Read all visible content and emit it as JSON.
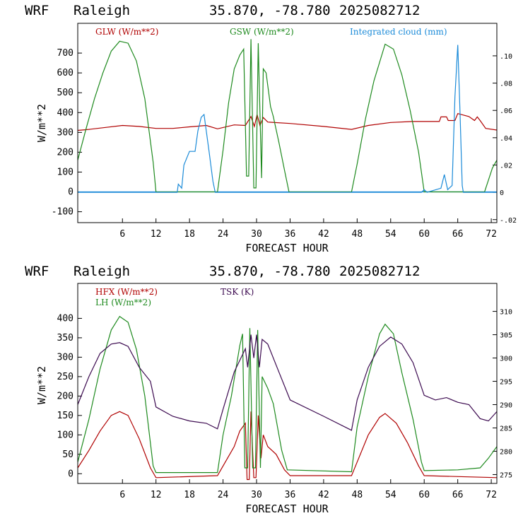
{
  "chart_data": [
    {
      "type": "line",
      "header": {
        "model": "WRF",
        "location": "Raleigh",
        "coords": "35.870, -78.780",
        "run": "2025082712"
      },
      "xlabel": "FORECAST HOUR",
      "ylabel": "W/m**2",
      "xlim": [
        -2,
        73
      ],
      "ylim": [
        -155,
        850
      ],
      "y2lim": [
        -0.0222,
        0.1238
      ],
      "xticks": [
        "6",
        "12",
        "18",
        "24",
        "30",
        "36",
        "42",
        "48",
        "54",
        "60",
        "66",
        "72"
      ],
      "yticks": [
        "-100",
        "0",
        "100",
        "200",
        "300",
        "400",
        "500",
        "600",
        "700"
      ],
      "y2ticks": [
        "-.02",
        "0",
        ".02",
        ".04",
        ".06",
        ".08",
        ".10"
      ],
      "zero_line": true,
      "colors": {
        "glw": "#b00000",
        "gsw": "#1e8a1e",
        "cloud": "#1a8ad8"
      },
      "series": [
        {
          "name": "GLW (W/m**2)",
          "axis": "left",
          "color": "#b00000",
          "points": [
            [
              -2,
              310
            ],
            [
              0,
              315
            ],
            [
              3,
              325
            ],
            [
              6,
              335
            ],
            [
              9,
              330
            ],
            [
              12,
              320
            ],
            [
              15,
              320
            ],
            [
              18,
              328
            ],
            [
              21,
              335
            ],
            [
              23,
              318
            ],
            [
              26,
              338
            ],
            [
              28,
              335
            ],
            [
              29,
              380
            ],
            [
              29.6,
              330
            ],
            [
              30.1,
              390
            ],
            [
              30.6,
              335
            ],
            [
              31.2,
              375
            ],
            [
              32,
              352
            ],
            [
              36,
              345
            ],
            [
              42,
              330
            ],
            [
              47,
              315
            ],
            [
              50,
              335
            ],
            [
              54,
              350
            ],
            [
              58,
              355
            ],
            [
              61,
              355
            ],
            [
              62.7,
              355
            ],
            [
              63,
              378
            ],
            [
              64,
              378
            ],
            [
              64.3,
              360
            ],
            [
              65.5,
              360
            ],
            [
              66,
              395
            ],
            [
              68,
              380
            ],
            [
              69,
              360
            ],
            [
              69.5,
              378
            ],
            [
              70,
              360
            ],
            [
              71,
              320
            ],
            [
              73,
              312
            ]
          ]
        },
        {
          "name": "GSW (W/m**2)",
          "axis": "left",
          "color": "#1e8a1e",
          "points": [
            [
              -2,
              160
            ],
            [
              -0.5,
              320
            ],
            [
              1,
              470
            ],
            [
              2.5,
              600
            ],
            [
              4,
              710
            ],
            [
              5.5,
              760
            ],
            [
              7,
              750
            ],
            [
              8.5,
              660
            ],
            [
              10,
              470
            ],
            [
              11.5,
              150
            ],
            [
              12,
              0
            ],
            [
              23,
              0
            ],
            [
              24,
              210
            ],
            [
              25,
              450
            ],
            [
              26,
              620
            ],
            [
              27,
              690
            ],
            [
              27.7,
              720
            ],
            [
              28.2,
              80
            ],
            [
              28.6,
              80
            ],
            [
              29,
              770
            ],
            [
              29.5,
              20
            ],
            [
              29.9,
              20
            ],
            [
              30.3,
              750
            ],
            [
              30.9,
              70
            ],
            [
              31.2,
              620
            ],
            [
              31.7,
              600
            ],
            [
              32.5,
              430
            ],
            [
              33,
              380
            ],
            [
              34,
              250
            ],
            [
              35,
              110
            ],
            [
              35.8,
              0
            ],
            [
              47,
              0
            ],
            [
              48,
              140
            ],
            [
              49.5,
              370
            ],
            [
              51,
              560
            ],
            [
              53,
              745
            ],
            [
              54.5,
              720
            ],
            [
              56,
              590
            ],
            [
              57.5,
              410
            ],
            [
              59,
              200
            ],
            [
              60,
              0
            ],
            [
              70.8,
              0
            ],
            [
              72.2,
              120
            ],
            [
              73,
              160
            ]
          ]
        },
        {
          "name": "Integrated cloud (mm)",
          "axis": "right",
          "color": "#1a8ad8",
          "points": [
            [
              -2,
              0
            ],
            [
              15.8,
              0
            ],
            [
              16,
              0.006
            ],
            [
              16.6,
              0.003
            ],
            [
              17,
              0.02
            ],
            [
              18,
              0.03
            ],
            [
              19,
              0.03
            ],
            [
              19.5,
              0.045
            ],
            [
              20.1,
              0.055
            ],
            [
              20.6,
              0.057
            ],
            [
              21.5,
              0.03
            ],
            [
              22.2,
              0.008
            ],
            [
              22.6,
              0
            ],
            [
              59.5,
              0
            ],
            [
              60,
              0.002
            ],
            [
              60.5,
              0
            ],
            [
              63,
              0.003
            ],
            [
              63.6,
              0.013
            ],
            [
              64.2,
              0.002
            ],
            [
              65,
              0.005
            ],
            [
              65.5,
              0.07
            ],
            [
              66,
              0.108
            ],
            [
              66.4,
              0.06
            ],
            [
              66.8,
              0.005
            ],
            [
              67,
              0
            ],
            [
              73,
              0
            ]
          ]
        }
      ]
    },
    {
      "type": "line",
      "header": {
        "model": "WRF",
        "location": "Raleigh",
        "coords": "35.870, -78.780",
        "run": "2025082712"
      },
      "xlabel": "FORECAST HOUR",
      "ylabel": "W/m**2",
      "xlim": [
        -2,
        73
      ],
      "ylim": [
        -25,
        490
      ],
      "y2lim": [
        273.1,
        316.0
      ],
      "xticks": [
        "6",
        "12",
        "18",
        "24",
        "30",
        "36",
        "42",
        "48",
        "54",
        "60",
        "66",
        "72"
      ],
      "yticks": [
        "0",
        "50",
        "100",
        "150",
        "200",
        "250",
        "300",
        "350",
        "400"
      ],
      "y2ticks": [
        "275",
        "280",
        "285",
        "290",
        "295",
        "300",
        "305",
        "310"
      ],
      "zero_line": false,
      "colors": {
        "hfx": "#b00000",
        "lh": "#1e8a1e",
        "tsk": "#3c0a50"
      },
      "series": [
        {
          "name": "HFX (W/m**2)",
          "axis": "left",
          "color": "#b00000",
          "points": [
            [
              -2,
              15
            ],
            [
              0,
              60
            ],
            [
              2,
              110
            ],
            [
              4,
              150
            ],
            [
              5.5,
              160
            ],
            [
              7,
              150
            ],
            [
              9,
              90
            ],
            [
              11,
              15
            ],
            [
              12,
              -10
            ],
            [
              23,
              -5
            ],
            [
              24,
              20
            ],
            [
              26,
              70
            ],
            [
              27,
              110
            ],
            [
              28,
              130
            ],
            [
              28.3,
              -15
            ],
            [
              28.7,
              -15
            ],
            [
              29,
              160
            ],
            [
              29.5,
              -10
            ],
            [
              29.9,
              -10
            ],
            [
              30.3,
              150
            ],
            [
              30.8,
              40
            ],
            [
              31.2,
              100
            ],
            [
              32,
              70
            ],
            [
              33.5,
              50
            ],
            [
              35,
              10
            ],
            [
              36,
              -5
            ],
            [
              47,
              -5
            ],
            [
              48,
              30
            ],
            [
              50,
              100
            ],
            [
              52,
              145
            ],
            [
              53,
              155
            ],
            [
              55,
              130
            ],
            [
              57,
              80
            ],
            [
              59,
              20
            ],
            [
              60,
              -5
            ],
            [
              73,
              -10
            ]
          ]
        },
        {
          "name": "LH  (W/m**2)",
          "axis": "left",
          "color": "#1e8a1e",
          "points": [
            [
              -2,
              30
            ],
            [
              0,
              140
            ],
            [
              2,
              270
            ],
            [
              4,
              370
            ],
            [
              5.5,
              405
            ],
            [
              7,
              390
            ],
            [
              8.5,
              320
            ],
            [
              10,
              200
            ],
            [
              11.5,
              20
            ],
            [
              12,
              3
            ],
            [
              23,
              3
            ],
            [
              24,
              100
            ],
            [
              25.5,
              200
            ],
            [
              27,
              330
            ],
            [
              27.5,
              360
            ],
            [
              27.9,
              15
            ],
            [
              28.4,
              15
            ],
            [
              28.8,
              375
            ],
            [
              29.3,
              15
            ],
            [
              29.8,
              15
            ],
            [
              30.2,
              370
            ],
            [
              30.7,
              15
            ],
            [
              31,
              250
            ],
            [
              32,
              220
            ],
            [
              33,
              180
            ],
            [
              34.5,
              60
            ],
            [
              35.5,
              10
            ],
            [
              47,
              5
            ],
            [
              48,
              120
            ],
            [
              50,
              250
            ],
            [
              52,
              360
            ],
            [
              53,
              385
            ],
            [
              54.5,
              360
            ],
            [
              56,
              260
            ],
            [
              58,
              140
            ],
            [
              59.5,
              30
            ],
            [
              60,
              8
            ],
            [
              66,
              10
            ],
            [
              70,
              15
            ],
            [
              71.5,
              40
            ],
            [
              73,
              70
            ]
          ]
        },
        {
          "name": "TSK (K)",
          "axis": "right",
          "color": "#3c0a50",
          "points": [
            [
              -2,
              290
            ],
            [
              0,
              296
            ],
            [
              2,
              301
            ],
            [
              4,
              303
            ],
            [
              5.5,
              303.3
            ],
            [
              7,
              302.5
            ],
            [
              9,
              298
            ],
            [
              11,
              295
            ],
            [
              12,
              289.5
            ],
            [
              15,
              287.5
            ],
            [
              18,
              286.5
            ],
            [
              21,
              286
            ],
            [
              23,
              284.8
            ],
            [
              24,
              289
            ],
            [
              26,
              297
            ],
            [
              28,
              302
            ],
            [
              28.4,
              298
            ],
            [
              29,
              305
            ],
            [
              29.5,
              300
            ],
            [
              30,
              305
            ],
            [
              30.5,
              298
            ],
            [
              31,
              304
            ],
            [
              32,
              303
            ],
            [
              34,
              297
            ],
            [
              36,
              291
            ],
            [
              42,
              287.5
            ],
            [
              47,
              284.5
            ],
            [
              48,
              291
            ],
            [
              50,
              298
            ],
            [
              52,
              302.5
            ],
            [
              54,
              304.5
            ],
            [
              56,
              303
            ],
            [
              58,
              299
            ],
            [
              60,
              292
            ],
            [
              62,
              291
            ],
            [
              64,
              291.5
            ],
            [
              66,
              290.5
            ],
            [
              68,
              290
            ],
            [
              70,
              287
            ],
            [
              71.5,
              286.5
            ],
            [
              73,
              288.5
            ]
          ]
        }
      ]
    }
  ]
}
